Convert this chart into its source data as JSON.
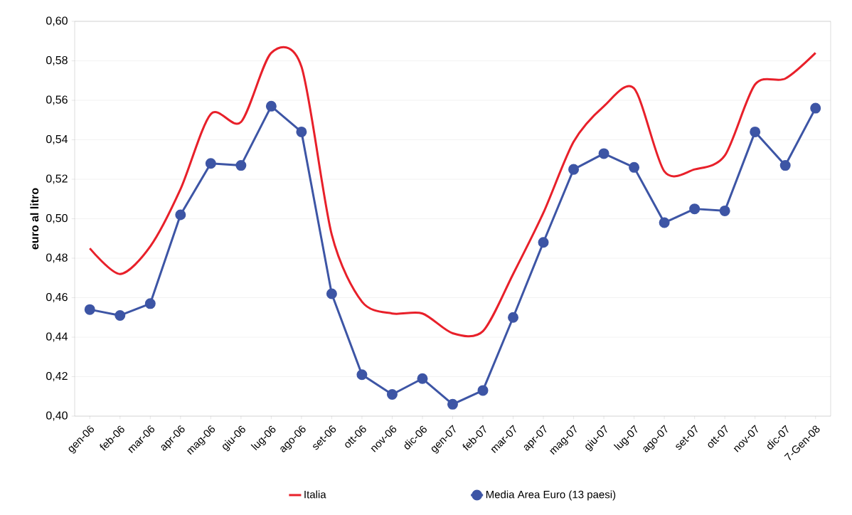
{
  "chart_data": {
    "type": "line",
    "ylabel": "euro al litro",
    "categories": [
      "gen-06",
      "feb-06",
      "mar-06",
      "apr-06",
      "mag-06",
      "giu-06",
      "lug-06",
      "ago-06",
      "set-06",
      "ott-06",
      "nov-06",
      "dic-06",
      "gen-07",
      "feb-07",
      "mar-07",
      "apr-07",
      "mag-07",
      "giu-07",
      "lug-07",
      "ago-07",
      "set-07",
      "ott-07",
      "nov-07",
      "dic-07",
      "7-Gen-08"
    ],
    "series": [
      {
        "name": "Italia",
        "color": "#e8202a",
        "marker": "none",
        "values": [
          0.485,
          0.472,
          0.486,
          0.515,
          0.553,
          0.549,
          0.584,
          0.577,
          0.492,
          0.458,
          0.452,
          0.452,
          0.442,
          0.443,
          0.472,
          0.503,
          0.539,
          0.557,
          0.566,
          0.524,
          0.525,
          0.532,
          0.568,
          0.571,
          0.584
        ]
      },
      {
        "name": "Media Area Euro (13 paesi)",
        "color": "#3d55a5",
        "marker": "circle",
        "values": [
          0.454,
          0.451,
          0.457,
          0.502,
          0.528,
          0.527,
          0.557,
          0.544,
          0.462,
          0.421,
          0.411,
          0.419,
          0.406,
          0.413,
          0.45,
          0.488,
          0.525,
          0.533,
          0.526,
          0.498,
          0.505,
          0.504,
          0.544,
          0.527,
          0.556
        ]
      }
    ],
    "ylim": [
      0.4,
      0.6
    ],
    "yticks": [
      {
        "value": 0.4,
        "label": "0,40"
      },
      {
        "value": 0.42,
        "label": "0,42"
      },
      {
        "value": 0.44,
        "label": "0,44"
      },
      {
        "value": 0.46,
        "label": "0,46"
      },
      {
        "value": 0.48,
        "label": "0,48"
      },
      {
        "value": 0.5,
        "label": "0,50"
      },
      {
        "value": 0.52,
        "label": "0,52"
      },
      {
        "value": 0.54,
        "label": "0,54"
      },
      {
        "value": 0.56,
        "label": "0,56"
      },
      {
        "value": 0.58,
        "label": "0,58"
      },
      {
        "value": 0.6,
        "label": "0,60"
      }
    ],
    "grid": "y",
    "legend": "bottom",
    "line_style": "solid"
  }
}
